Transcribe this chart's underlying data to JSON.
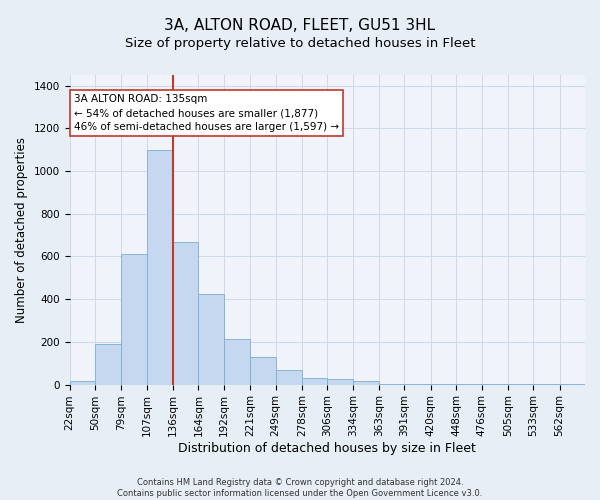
{
  "title": "3A, ALTON ROAD, FLEET, GU51 3HL",
  "subtitle": "Size of property relative to detached houses in Fleet",
  "xlabel": "Distribution of detached houses by size in Fleet",
  "ylabel": "Number of detached properties",
  "footer_line1": "Contains HM Land Registry data © Crown copyright and database right 2024.",
  "footer_line2": "Contains public sector information licensed under the Open Government Licence v3.0.",
  "annotation_title": "3A ALTON ROAD: 135sqm",
  "annotation_line2": "← 54% of detached houses are smaller (1,877)",
  "annotation_line3": "46% of semi-detached houses are larger (1,597) →",
  "property_line_x": 136,
  "bar_edges": [
    22,
    50,
    79,
    107,
    136,
    164,
    192,
    221,
    249,
    278,
    306,
    334,
    363,
    391,
    420,
    448,
    476,
    505,
    533,
    562,
    590
  ],
  "bar_heights": [
    15,
    190,
    610,
    1100,
    670,
    425,
    215,
    130,
    70,
    30,
    25,
    15,
    5,
    5,
    5,
    5,
    2,
    5,
    2,
    2,
    2
  ],
  "bar_color": "#c5d8ef",
  "bar_edge_color": "#7aafd4",
  "line_color": "#c0392b",
  "ylim": [
    0,
    1450
  ],
  "yticks": [
    0,
    200,
    400,
    600,
    800,
    1000,
    1200,
    1400
  ],
  "bg_color": "#e8eef6",
  "plot_bg_color": "#f0f4fa",
  "grid_color": "#c8d4e8",
  "title_fontsize": 11,
  "subtitle_fontsize": 9.5,
  "xlabel_fontsize": 9,
  "ylabel_fontsize": 8.5,
  "tick_fontsize": 7.5,
  "annotation_fontsize": 7.5,
  "footer_fontsize": 6
}
